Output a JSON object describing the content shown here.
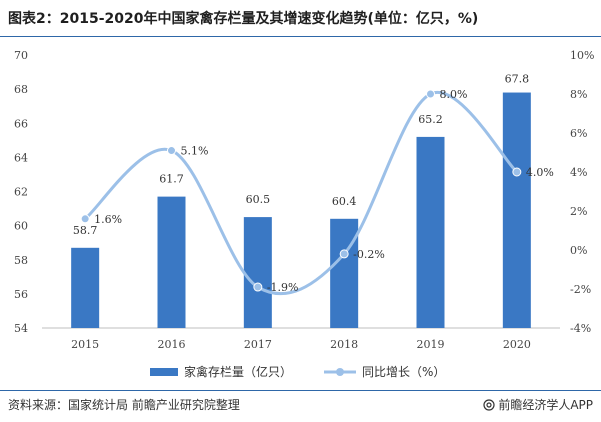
{
  "title": "图表2：2015-2020年中国家禽存栏量及其增速变化趋势(单位：亿只，%)",
  "source": "资料来源：国家统计局 前瞻产业研究院整理",
  "brand": "@前瞻经济学人APP",
  "colors": {
    "bar": "#3a78c4",
    "line": "#9cc0e8",
    "rule": "#2e67a8"
  },
  "chart_data": {
    "type": "bar",
    "categories": [
      "2015",
      "2016",
      "2017",
      "2018",
      "2019",
      "2020"
    ],
    "series": [
      {
        "name": "家禽存栏量（亿只）",
        "type": "bar",
        "axis": "left",
        "values": [
          58.7,
          61.7,
          60.5,
          60.4,
          65.2,
          67.8
        ],
        "labels": [
          "58.7",
          "61.7",
          "60.5",
          "60.4",
          "65.2",
          "67.8"
        ]
      },
      {
        "name": "同比增长（%）",
        "type": "line",
        "axis": "right",
        "values": [
          1.6,
          5.1,
          -1.9,
          -0.2,
          8.0,
          4.0
        ],
        "labels": [
          "1.6%",
          "5.1%",
          "-1.9%",
          "-0.2%",
          "8.0%",
          "4.0%"
        ]
      }
    ],
    "left_axis": {
      "ylim": [
        54,
        70
      ],
      "ticks": [
        "54",
        "56",
        "58",
        "60",
        "62",
        "64",
        "66",
        "68",
        "70"
      ]
    },
    "right_axis": {
      "ylim": [
        -4,
        10
      ],
      "ticks": [
        "-4%",
        "-2%",
        "0%",
        "2%",
        "4%",
        "6%",
        "8%",
        "10%"
      ]
    },
    "legend_position": "bottom-center",
    "grid": false
  }
}
